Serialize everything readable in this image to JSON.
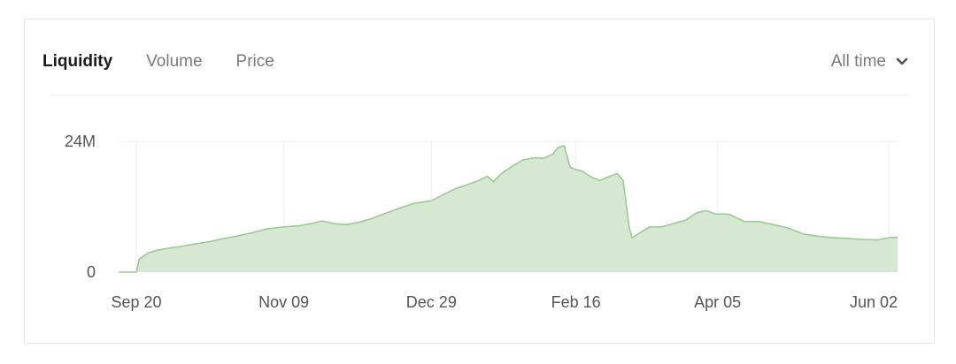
{
  "tabs": [
    {
      "label": "Liquidity",
      "active": true
    },
    {
      "label": "Volume",
      "active": false
    },
    {
      "label": "Price",
      "active": false
    }
  ],
  "range": {
    "label": "All time",
    "icon": "chevron-down-icon"
  },
  "colors": {
    "area_fill": "#d6e8d1",
    "area_stroke": "#9cc996",
    "grid": "#eeeeee",
    "tick_text": "#555555"
  },
  "chart_data": {
    "type": "area",
    "title": "",
    "xlabel": "",
    "ylabel": "",
    "grid": true,
    "ylim": [
      0,
      24000000
    ],
    "y_ticks": [
      {
        "value": 0,
        "label": "0"
      },
      {
        "value": 24000000,
        "label": "24M"
      }
    ],
    "x_ticks": [
      {
        "date": "2020-09-20",
        "label": "Sep 20"
      },
      {
        "date": "2020-11-09",
        "label": "Nov 09"
      },
      {
        "date": "2020-12-29",
        "label": "Dec 29"
      },
      {
        "date": "2021-02-16",
        "label": "Feb 16"
      },
      {
        "date": "2021-04-05",
        "label": "Apr 05"
      },
      {
        "date": "2021-06-02",
        "label": "Jun 02"
      }
    ],
    "series": [
      {
        "x": [
          "2020-09-14",
          "2020-09-18",
          "2020-09-20",
          "2020-09-21",
          "2020-09-24",
          "2020-09-27",
          "2020-10-01",
          "2020-10-05",
          "2020-10-09",
          "2020-10-14",
          "2020-10-19",
          "2020-10-24",
          "2020-10-29",
          "2020-11-03",
          "2020-11-09",
          "2020-11-14",
          "2020-11-19",
          "2020-11-22",
          "2020-11-26",
          "2020-11-30",
          "2020-12-04",
          "2020-12-08",
          "2020-12-13",
          "2020-12-18",
          "2020-12-23",
          "2020-12-29",
          "2021-01-02",
          "2021-01-06",
          "2021-01-10",
          "2021-01-14",
          "2021-01-17",
          "2021-01-19",
          "2021-01-22",
          "2021-01-26",
          "2021-01-29",
          "2021-02-02",
          "2021-02-05",
          "2021-02-08",
          "2021-02-10",
          "2021-02-12",
          "2021-02-14",
          "2021-02-16",
          "2021-02-18",
          "2021-02-21",
          "2021-02-24",
          "2021-02-27",
          "2021-03-02",
          "2021-03-04",
          "2021-03-06",
          "2021-03-07",
          "2021-03-09",
          "2021-03-13",
          "2021-03-17",
          "2021-03-21",
          "2021-03-25",
          "2021-03-29",
          "2021-04-01",
          "2021-04-04",
          "2021-04-09",
          "2021-04-14",
          "2021-04-19",
          "2021-04-24",
          "2021-04-29",
          "2021-05-04",
          "2021-05-09",
          "2021-05-14",
          "2021-05-19",
          "2021-05-24",
          "2021-05-29",
          "2021-06-02",
          "2021-06-05"
        ],
        "values": [
          0,
          0,
          0,
          2400000,
          3500000,
          4000000,
          4400000,
          4700000,
          5100000,
          5500000,
          6100000,
          6600000,
          7200000,
          7900000,
          8300000,
          8500000,
          9000000,
          9400000,
          8900000,
          8700000,
          9100000,
          9700000,
          10700000,
          11700000,
          12600000,
          13100000,
          14200000,
          15300000,
          16000000,
          16800000,
          17600000,
          16600000,
          18200000,
          19600000,
          20600000,
          21000000,
          20900000,
          21600000,
          22900000,
          23200000,
          19300000,
          18800000,
          18600000,
          17500000,
          16800000,
          17500000,
          18100000,
          16800000,
          8300000,
          6300000,
          7000000,
          8300000,
          8300000,
          8900000,
          9500000,
          10900000,
          11300000,
          10700000,
          10600000,
          9300000,
          9300000,
          8700000,
          8100000,
          7000000,
          6600000,
          6300000,
          6200000,
          6000000,
          5900000,
          6300000,
          6400000
        ]
      }
    ]
  }
}
